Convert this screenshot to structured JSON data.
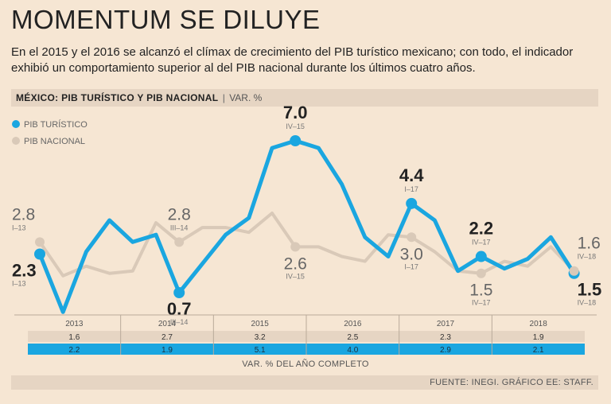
{
  "title": "MOMENTUM SE DILUYE",
  "subtitle": "En el 2015 y el 2016 se alcanzó el clímax de crecimiento del PIB turístico mexicano; con todo, el indicador exhibió un comportamiento superior al del PIB nacional durante los últimos cuatro años.",
  "header": {
    "title": "MÉXICO: PIB TURÍSTICO Y PIB NACIONAL",
    "separator": "|",
    "unit": "VAR. %"
  },
  "footnote": "VAR. % DEL AÑO COMPLETO",
  "source": "FUENTE: INEGI. GRÁFICO EE: STAFF.",
  "colors": {
    "turistico": "#1aa6e0",
    "nacional": "#d9c9b8",
    "background": "#f6e6d3",
    "band": "#e6d5c3"
  },
  "chart_data": {
    "type": "line",
    "ylim": [
      -1.5,
      9.0
    ],
    "legend": [
      "PIB TURÍSTICO",
      "PIB NACIONAL"
    ],
    "series": [
      {
        "name": "PIB TURÍSTICO",
        "color": "#1aa6e0",
        "values": [
          2.3,
          -0.1,
          2.4,
          3.7,
          2.8,
          3.1,
          0.7,
          1.9,
          3.1,
          3.8,
          6.7,
          7.0,
          6.7,
          5.2,
          3.0,
          2.2,
          4.4,
          3.7,
          1.6,
          2.2,
          1.7,
          2.1,
          3.0,
          1.5
        ]
      },
      {
        "name": "PIB NACIONAL",
        "color": "#d9c9b8",
        "values": [
          2.8,
          1.4,
          1.8,
          1.5,
          1.6,
          3.6,
          2.8,
          3.4,
          3.4,
          3.2,
          4.0,
          2.6,
          2.6,
          2.2,
          2.0,
          3.1,
          3.0,
          2.4,
          1.6,
          1.5,
          2.0,
          1.8,
          2.6,
          1.6
        ]
      }
    ],
    "annotations": [
      {
        "series": 0,
        "index": 0,
        "value": "2.3",
        "period": "I–13",
        "position": "below",
        "style": "bold"
      },
      {
        "series": 1,
        "index": 0,
        "value": "2.8",
        "period": "I–13",
        "position": "above",
        "style": "light"
      },
      {
        "series": 0,
        "index": 6,
        "value": "0.7",
        "period": "III–14",
        "position": "below",
        "style": "bold"
      },
      {
        "series": 1,
        "index": 6,
        "value": "2.8",
        "period": "III–14",
        "position": "above",
        "style": "light"
      },
      {
        "series": 0,
        "index": 11,
        "value": "7.0",
        "period": "IV–15",
        "position": "above",
        "style": "bold"
      },
      {
        "series": 1,
        "index": 11,
        "value": "2.6",
        "period": "IV–15",
        "position": "below",
        "style": "light"
      },
      {
        "series": 0,
        "index": 16,
        "value": "4.4",
        "period": "I–17",
        "position": "above",
        "style": "bold"
      },
      {
        "series": 1,
        "index": 16,
        "value": "3.0",
        "period": "I–17",
        "position": "below",
        "style": "light"
      },
      {
        "series": 0,
        "index": 19,
        "value": "2.2",
        "period": "IV–17",
        "position": "above",
        "style": "bold"
      },
      {
        "series": 1,
        "index": 19,
        "value": "1.5",
        "period": "IV–17",
        "position": "below",
        "style": "light"
      },
      {
        "series": 0,
        "index": 23,
        "value": "1.5",
        "period": "IV–18",
        "position": "below",
        "style": "bold"
      },
      {
        "series": 1,
        "index": 23,
        "value": "1.6",
        "period": "IV–18",
        "position": "above",
        "style": "light"
      }
    ],
    "table": {
      "years": [
        "2013",
        "2014",
        "2015",
        "2016",
        "2017",
        "2018"
      ],
      "nacional": [
        "1.6",
        "2.7",
        "3.2",
        "2.5",
        "2.3",
        "1.9"
      ],
      "turistico": [
        "2.2",
        "1.9",
        "5.1",
        "4.0",
        "2.9",
        "2.1"
      ]
    }
  }
}
